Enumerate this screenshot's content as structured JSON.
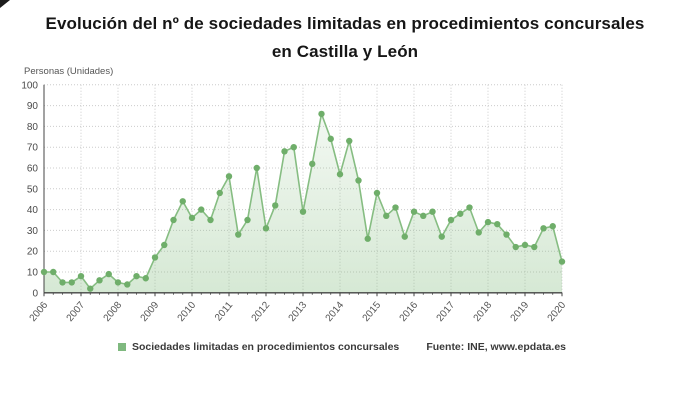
{
  "title": "Evolución del nº de sociedades limitadas en procedimientos concursales en Castilla y León",
  "y_axis_title": "Personas (Unidades)",
  "legend": {
    "label": "Sociedades limitadas en procedimientos concursales"
  },
  "source": "Fuente: INE, www.epdata.es",
  "colors": {
    "line": "#86bd82",
    "dot": "#6fae6a",
    "area_top": "rgba(134,189,130,0.10)",
    "area_bottom": "rgba(134,189,130,0.34)",
    "grid": "#cccccc",
    "axis": "#444444",
    "tick_label": "#4a4a4a",
    "legend_swatch": "#7fb97f"
  },
  "chart_data": {
    "type": "area",
    "title": "Evolución del nº de sociedades limitadas en procedimientos concursales en Castilla y León",
    "ylabel": "Personas (Unidades)",
    "x_years": [
      2006,
      2007,
      2008,
      2009,
      2010,
      2011,
      2012,
      2013,
      2014,
      2015,
      2016,
      2017,
      2018,
      2019,
      2020
    ],
    "x_frequency": "quarterly",
    "x_start": "2006-Q1",
    "x_end": "2020-Q1",
    "values": [
      10,
      10,
      5,
      5,
      8,
      2,
      6,
      9,
      5,
      4,
      8,
      7,
      17,
      23,
      35,
      44,
      36,
      40,
      35,
      48,
      56,
      28,
      35,
      60,
      31,
      42,
      68,
      70,
      39,
      62,
      86,
      74,
      57,
      73,
      54,
      26,
      48,
      37,
      41,
      27,
      39,
      37,
      39,
      27,
      35,
      38,
      41,
      29,
      34,
      33,
      28,
      22,
      23,
      22,
      31,
      32,
      15
    ],
    "ylim": [
      0,
      100
    ],
    "yticks": [
      0,
      10,
      20,
      30,
      40,
      50,
      60,
      70,
      80,
      90,
      100
    ],
    "grid": true,
    "legend_position": "bottom",
    "legend_entries": [
      "Sociedades limitadas en procedimientos concursales"
    ],
    "annotations": [
      "Fuente: INE, www.epdata.es"
    ]
  }
}
